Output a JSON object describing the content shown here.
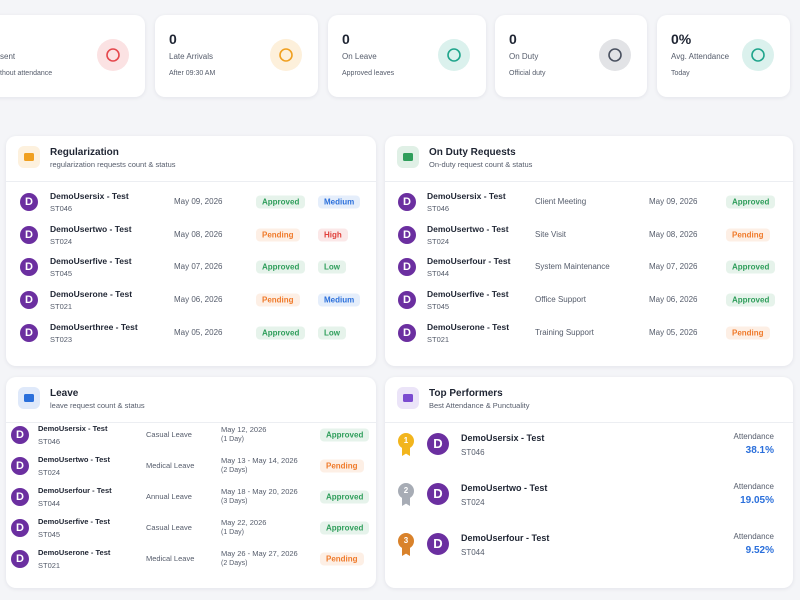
{
  "stats": [
    {
      "label": "sent",
      "sub": "thout attendance",
      "color": "#e5484d"
    },
    {
      "value": "0",
      "label": "Late Arrivals",
      "sub": "After 09:30 AM",
      "color": "#f0a020"
    },
    {
      "value": "0",
      "label": "On Leave",
      "sub": "Approved leaves",
      "color": "#20a58c"
    },
    {
      "value": "0",
      "label": "On Duty",
      "sub": "Official duty",
      "color": "#4a5160"
    },
    {
      "value": "0%",
      "label": "Avg. Attendance",
      "sub": "Today",
      "color": "#20a58c"
    }
  ],
  "regularization": {
    "title": "Regularization",
    "subtitle": "regularization requests count & status",
    "rows": [
      {
        "avatar": "D",
        "name": "DemoUsersix - Test",
        "id": "ST046",
        "date": "May 09, 2026",
        "status": {
          "text": "Approved",
          "color": "#2f9e5b"
        },
        "priority": {
          "text": "Medium",
          "color": "#2a6fdb"
        }
      },
      {
        "avatar": "D",
        "name": "DemoUsertwo - Test",
        "id": "ST024",
        "date": "May 08, 2026",
        "status": {
          "text": "Pending",
          "color": "#ef7a2a"
        },
        "priority": {
          "text": "High",
          "color": "#e0413c"
        }
      },
      {
        "avatar": "D",
        "name": "DemoUserfive - Test",
        "id": "ST045",
        "date": "May 07, 2026",
        "status": {
          "text": "Approved",
          "color": "#2f9e5b"
        },
        "priority": {
          "text": "Low",
          "color": "#2f9e5b"
        }
      },
      {
        "avatar": "D",
        "name": "DemoUserone - Test",
        "id": "ST021",
        "date": "May 06, 2026",
        "status": {
          "text": "Pending",
          "color": "#ef7a2a"
        },
        "priority": {
          "text": "Medium",
          "color": "#2a6fdb"
        }
      },
      {
        "avatar": "D",
        "name": "DemoUserthree - Test",
        "id": "ST023",
        "date": "May 05, 2026",
        "status": {
          "text": "Approved",
          "color": "#2f9e5b"
        },
        "priority": {
          "text": "Low",
          "color": "#2f9e5b"
        }
      }
    ]
  },
  "on_duty": {
    "title": "On Duty Requests",
    "subtitle": "On-duty request count & status",
    "rows": [
      {
        "avatar": "D",
        "name": "DemoUsersix - Test",
        "id": "ST046",
        "type": "Client Meeting",
        "date": "May 09, 2026",
        "status": {
          "text": "Approved",
          "color": "#2f9e5b"
        }
      },
      {
        "avatar": "D",
        "name": "DemoUsertwo - Test",
        "id": "ST024",
        "type": "Site Visit",
        "date": "May 08, 2026",
        "status": {
          "text": "Pending",
          "color": "#ef7a2a"
        }
      },
      {
        "avatar": "D",
        "name": "DemoUserfour - Test",
        "id": "ST044",
        "type": "System Maintenance",
        "date": "May 07, 2026",
        "status": {
          "text": "Approved",
          "color": "#2f9e5b"
        }
      },
      {
        "avatar": "D",
        "name": "DemoUserfive - Test",
        "id": "ST045",
        "type": "Office Support",
        "date": "May 06, 2026",
        "status": {
          "text": "Approved",
          "color": "#2f9e5b"
        }
      },
      {
        "avatar": "D",
        "name": "DemoUserone - Test",
        "id": "ST021",
        "type": "Training Support",
        "date": "May 05, 2026",
        "status": {
          "text": "Pending",
          "color": "#ef7a2a"
        }
      }
    ]
  },
  "leave": {
    "title": "Leave",
    "subtitle": "leave request count & status",
    "rows": [
      {
        "avatar": "D",
        "name": "DemoUsersix - Test",
        "id": "ST046",
        "type": "Casual Leave",
        "date": "May 12, 2026",
        "days": "(1 Day)",
        "status": {
          "text": "Approved",
          "color": "#2f9e5b"
        }
      },
      {
        "avatar": "D",
        "name": "DemoUsertwo - Test",
        "id": "ST024",
        "type": "Medical Leave",
        "date": "May 13 - May 14, 2026",
        "days": "(2 Days)",
        "status": {
          "text": "Pending",
          "color": "#ef7a2a"
        }
      },
      {
        "avatar": "D",
        "name": "DemoUserfour - Test",
        "id": "ST044",
        "type": "Annual Leave",
        "date": "May 18 - May 20, 2026",
        "days": "(3 Days)",
        "status": {
          "text": "Approved",
          "color": "#2f9e5b"
        }
      },
      {
        "avatar": "D",
        "name": "DemoUserfive - Test",
        "id": "ST045",
        "type": "Casual Leave",
        "date": "May 22, 2026",
        "days": "(1 Day)",
        "status": {
          "text": "Approved",
          "color": "#2f9e5b"
        }
      },
      {
        "avatar": "D",
        "name": "DemoUserone - Test",
        "id": "ST021",
        "type": "Medical Leave",
        "date": "May 26 - May 27, 2026",
        "days": "(2 Days)",
        "status": {
          "text": "Pending",
          "color": "#ef7a2a"
        }
      }
    ]
  },
  "top_performers": {
    "title": "Top Performers",
    "subtitle": "Best Attendance & Punctuality",
    "rows": [
      {
        "rank": "1",
        "medal": "#f2b51d",
        "avatar": "D",
        "name": "DemoUsersix - Test",
        "id": "ST046",
        "label": "Attendance",
        "value": "38.1%"
      },
      {
        "rank": "2",
        "medal": "#a7acb5",
        "avatar": "D",
        "name": "DemoUsertwo - Test",
        "id": "ST024",
        "label": "Attendance",
        "value": "19.05%"
      },
      {
        "rank": "3",
        "medal": "#d9822b",
        "avatar": "D",
        "name": "DemoUserfour - Test",
        "id": "ST044",
        "label": "Attendance",
        "value": "9.52%"
      }
    ]
  }
}
